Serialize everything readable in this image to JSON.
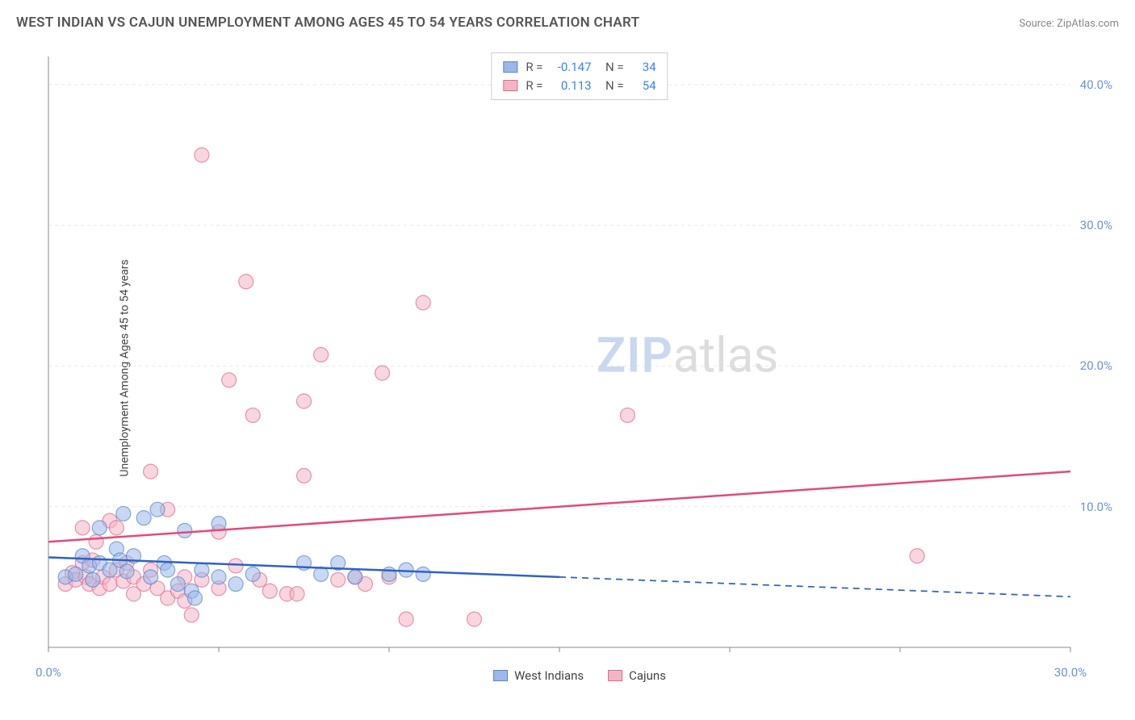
{
  "title": "WEST INDIAN VS CAJUN UNEMPLOYMENT AMONG AGES 45 TO 54 YEARS CORRELATION CHART",
  "source": "Source: ZipAtlas.com",
  "ylabel": "Unemployment Among Ages 45 to 54 years",
  "watermark": {
    "bold": "ZIP",
    "light": "atlas"
  },
  "chart": {
    "type": "scatter",
    "xlim": [
      0,
      30
    ],
    "ylim": [
      0,
      42
    ],
    "xticks": [
      0,
      30
    ],
    "xtick_labels": [
      "0.0%",
      "30.0%"
    ],
    "yticks": [
      10,
      20,
      30,
      40
    ],
    "ytick_labels": [
      "10.0%",
      "20.0%",
      "30.0%",
      "40.0%"
    ],
    "background_color": "#ffffff",
    "grid_color": "#e8e8e8",
    "axis_color": "#888888",
    "marker_radius": 9,
    "marker_opacity": 0.55,
    "series": {
      "west_indians": {
        "label": "West Indians",
        "fill_color": "#9bb8e8",
        "stroke_color": "#5a86cf",
        "R": "-0.147",
        "N": "34",
        "trend": {
          "y_at_x0": 6.4,
          "y_at_xmax": 3.6,
          "solid_until_x": 15,
          "color": "#2f63c4",
          "width": 2.5
        },
        "points": [
          [
            0.5,
            5.0
          ],
          [
            0.8,
            5.2
          ],
          [
            1.0,
            6.5
          ],
          [
            1.2,
            5.8
          ],
          [
            1.3,
            4.8
          ],
          [
            1.5,
            6.0
          ],
          [
            1.5,
            8.5
          ],
          [
            1.8,
            5.5
          ],
          [
            2.0,
            7.0
          ],
          [
            2.1,
            6.2
          ],
          [
            2.2,
            9.5
          ],
          [
            2.3,
            5.4
          ],
          [
            2.5,
            6.5
          ],
          [
            2.8,
            9.2
          ],
          [
            3.0,
            5.0
          ],
          [
            3.2,
            9.8
          ],
          [
            3.4,
            6.0
          ],
          [
            3.5,
            5.5
          ],
          [
            3.8,
            4.5
          ],
          [
            4.0,
            8.3
          ],
          [
            4.2,
            4.0
          ],
          [
            4.3,
            3.5
          ],
          [
            4.5,
            5.5
          ],
          [
            5.0,
            8.8
          ],
          [
            5.0,
            5.0
          ],
          [
            5.5,
            4.5
          ],
          [
            6.0,
            5.2
          ],
          [
            7.5,
            6.0
          ],
          [
            8.0,
            5.2
          ],
          [
            8.5,
            6.0
          ],
          [
            9.0,
            5.0
          ],
          [
            10.0,
            5.2
          ],
          [
            10.5,
            5.5
          ],
          [
            11.0,
            5.2
          ]
        ]
      },
      "cajuns": {
        "label": "Cajuns",
        "fill_color": "#f3b5c4",
        "stroke_color": "#e06b8b",
        "R": "0.113",
        "N": "54",
        "trend": {
          "y_at_x0": 7.5,
          "y_at_xmax": 12.5,
          "solid_until_x": 30,
          "color": "#e24a7a",
          "width": 2.5
        },
        "points": [
          [
            0.5,
            4.5
          ],
          [
            0.7,
            5.3
          ],
          [
            0.8,
            4.8
          ],
          [
            1.0,
            6.0
          ],
          [
            1.0,
            8.5
          ],
          [
            1.1,
            5.0
          ],
          [
            1.2,
            4.5
          ],
          [
            1.3,
            6.2
          ],
          [
            1.4,
            7.5
          ],
          [
            1.5,
            4.2
          ],
          [
            1.6,
            5.0
          ],
          [
            1.8,
            9.0
          ],
          [
            1.8,
            4.5
          ],
          [
            2.0,
            5.5
          ],
          [
            2.0,
            8.5
          ],
          [
            2.2,
            4.7
          ],
          [
            2.3,
            6.0
          ],
          [
            2.5,
            5.0
          ],
          [
            2.5,
            3.8
          ],
          [
            2.8,
            4.5
          ],
          [
            3.0,
            5.5
          ],
          [
            3.0,
            12.5
          ],
          [
            3.2,
            4.2
          ],
          [
            3.5,
            3.5
          ],
          [
            3.5,
            9.8
          ],
          [
            3.8,
            4.0
          ],
          [
            4.0,
            5.0
          ],
          [
            4.2,
            2.3
          ],
          [
            4.5,
            4.8
          ],
          [
            4.5,
            35.0
          ],
          [
            5.0,
            4.2
          ],
          [
            5.0,
            8.2
          ],
          [
            5.3,
            19.0
          ],
          [
            5.5,
            5.8
          ],
          [
            5.8,
            26.0
          ],
          [
            6.0,
            16.5
          ],
          [
            6.2,
            4.8
          ],
          [
            6.5,
            4.0
          ],
          [
            7.0,
            3.8
          ],
          [
            7.3,
            3.8
          ],
          [
            7.5,
            17.5
          ],
          [
            7.5,
            12.2
          ],
          [
            8.0,
            20.8
          ],
          [
            8.5,
            4.8
          ],
          [
            9.0,
            5.0
          ],
          [
            9.3,
            4.5
          ],
          [
            9.8,
            19.5
          ],
          [
            10.0,
            5.0
          ],
          [
            10.5,
            2.0
          ],
          [
            11.0,
            24.5
          ],
          [
            12.5,
            2.0
          ],
          [
            17.0,
            16.5
          ],
          [
            25.5,
            6.5
          ],
          [
            4.0,
            3.3
          ]
        ]
      }
    }
  },
  "legend_stats": [
    {
      "series": "west_indians"
    },
    {
      "series": "cajuns"
    }
  ],
  "bottom_legend": [
    "west_indians",
    "cajuns"
  ]
}
